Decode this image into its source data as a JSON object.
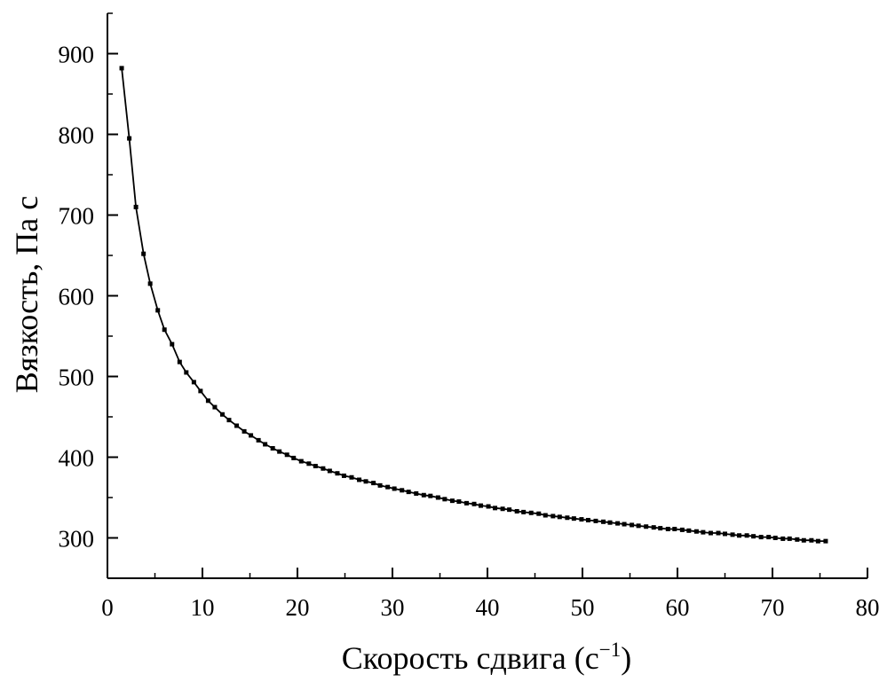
{
  "chart_data": {
    "type": "line",
    "title": "",
    "xlabel": "Скорость сдвига (с",
    "xlabel_sup": "−1",
    "xlabel_close": ")",
    "ylabel": "Вязкость, Па с",
    "xlim": [
      0,
      80
    ],
    "ylim": [
      250,
      950
    ],
    "x_ticks": [
      0,
      10,
      20,
      30,
      40,
      50,
      60,
      70,
      80
    ],
    "y_ticks": [
      300,
      400,
      500,
      600,
      700,
      800,
      900
    ],
    "x_minor_step": 5,
    "y_minor_step": 50,
    "grid": false,
    "legend": "none",
    "series": [
      {
        "marker": "square",
        "color": "#000000",
        "x": [
          1.5,
          2.3,
          3.0,
          3.8,
          4.5,
          5.3,
          6.0,
          6.8,
          7.6,
          8.3,
          9.1,
          9.8,
          10.6,
          11.3,
          12.1,
          12.8,
          13.6,
          14.4,
          15.1,
          15.9,
          16.6,
          17.4,
          18.1,
          18.9,
          19.6,
          20.4,
          21.2,
          21.9,
          22.7,
          23.4,
          24.2,
          24.9,
          25.7,
          26.5,
          27.2,
          28.0,
          28.7,
          29.5,
          30.2,
          31.0,
          31.7,
          32.5,
          33.3,
          34.0,
          34.8,
          35.5,
          36.3,
          37.0,
          37.8,
          38.6,
          39.3,
          40.1,
          40.8,
          41.6,
          42.3,
          43.1,
          43.8,
          44.6,
          45.4,
          46.1,
          46.9,
          47.6,
          48.4,
          49.1,
          49.9,
          50.6,
          51.4,
          52.2,
          52.9,
          53.7,
          54.4,
          55.2,
          55.9,
          56.7,
          57.5,
          58.2,
          59.0,
          59.7,
          60.5,
          61.2,
          62.0,
          62.7,
          63.5,
          64.3,
          65.0,
          65.8,
          66.5,
          67.3,
          68.0,
          68.8,
          69.6,
          70.3,
          71.1,
          71.8,
          72.6,
          73.3,
          74.1,
          74.8,
          75.6
        ],
        "y": [
          882,
          795,
          710,
          652,
          615,
          582,
          558,
          540,
          518,
          505,
          493,
          482,
          470,
          462,
          453,
          446,
          439,
          432,
          427,
          421,
          416,
          411,
          407,
          403,
          399,
          395,
          392,
          389,
          386,
          383,
          380,
          377,
          375,
          372,
          370,
          368,
          365,
          363,
          361,
          359,
          357,
          355,
          353,
          352,
          350,
          348,
          346,
          345,
          343,
          342,
          340,
          339,
          337,
          336,
          335,
          333,
          332,
          331,
          330,
          328,
          327,
          326,
          325,
          324,
          323,
          322,
          321,
          320,
          319,
          318,
          317,
          316,
          315,
          314,
          313,
          312,
          311,
          311,
          310,
          309,
          308,
          307,
          306,
          306,
          305,
          304,
          303,
          303,
          302,
          301,
          301,
          300,
          299,
          299,
          298,
          297,
          297,
          296,
          296
        ]
      }
    ]
  }
}
